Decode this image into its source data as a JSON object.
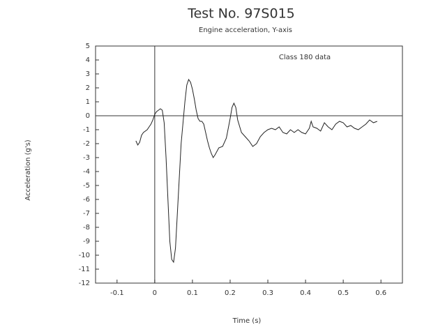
{
  "chart_data": {
    "type": "line",
    "title": "Test No. 97S015",
    "subtitle": "Engine acceleration, Y-axis",
    "x_label": "Time (s)",
    "y_label": "Acceleration (g's)",
    "annotation": "Class 180 data",
    "color": "#222222",
    "zero_lines": true,
    "xlim": [
      -0.157,
      0.657
    ],
    "ylim": [
      -12,
      5
    ],
    "xticks": [
      -0.1,
      0,
      0.1,
      0.2,
      0.3,
      0.4,
      0.5,
      0.6
    ],
    "yticks": [
      -12,
      -11,
      -10,
      -9,
      -8,
      -7,
      -6,
      -5,
      -4,
      -3,
      -2,
      -1,
      0,
      1,
      2,
      3,
      4,
      5
    ],
    "x": [
      -0.05,
      -0.045,
      -0.04,
      -0.035,
      -0.03,
      -0.02,
      -0.015,
      -0.01,
      -0.005,
      0,
      0.005,
      0.01,
      0.015,
      0.02,
      0.025,
      0.03,
      0.035,
      0.04,
      0.045,
      0.05,
      0.055,
      0.06,
      0.065,
      0.07,
      0.075,
      0.08,
      0.085,
      0.09,
      0.095,
      0.1,
      0.105,
      0.11,
      0.115,
      0.12,
      0.125,
      0.13,
      0.135,
      0.14,
      0.145,
      0.15,
      0.155,
      0.16,
      0.17,
      0.18,
      0.19,
      0.2,
      0.205,
      0.21,
      0.215,
      0.22,
      0.23,
      0.24,
      0.25,
      0.26,
      0.27,
      0.28,
      0.29,
      0.3,
      0.31,
      0.32,
      0.33,
      0.34,
      0.35,
      0.36,
      0.37,
      0.38,
      0.39,
      0.4,
      0.41,
      0.415,
      0.42,
      0.43,
      0.44,
      0.45,
      0.46,
      0.47,
      0.48,
      0.49,
      0.5,
      0.51,
      0.52,
      0.53,
      0.54,
      0.55,
      0.56,
      0.57,
      0.58,
      0.59
    ],
    "values": [
      -1.8,
      -2.1,
      -1.9,
      -1.4,
      -1.2,
      -1.0,
      -0.8,
      -0.6,
      -0.3,
      0.1,
      0.3,
      0.4,
      0.5,
      0.4,
      -0.5,
      -3,
      -6,
      -9,
      -10.3,
      -10.5,
      -9.5,
      -7,
      -4.5,
      -2,
      -0.5,
      1,
      2.2,
      2.6,
      2.4,
      1.9,
      1.2,
      0.4,
      -0.2,
      -0.4,
      -0.4,
      -0.6,
      -1.2,
      -1.8,
      -2.3,
      -2.7,
      -3.0,
      -2.8,
      -2.3,
      -2.2,
      -1.6,
      -0.2,
      0.6,
      0.9,
      0.6,
      -0.3,
      -1.2,
      -1.5,
      -1.8,
      -2.2,
      -2.0,
      -1.5,
      -1.2,
      -1.0,
      -0.9,
      -1.0,
      -0.8,
      -1.2,
      -1.3,
      -1.0,
      -1.2,
      -1.0,
      -1.2,
      -1.3,
      -0.9,
      -0.4,
      -0.8,
      -0.9,
      -1.1,
      -0.5,
      -0.8,
      -1.0,
      -0.6,
      -0.4,
      -0.5,
      -0.8,
      -0.7,
      -0.9,
      -1.0,
      -0.8,
      -0.6,
      -0.3,
      -0.5,
      -0.4
    ]
  }
}
